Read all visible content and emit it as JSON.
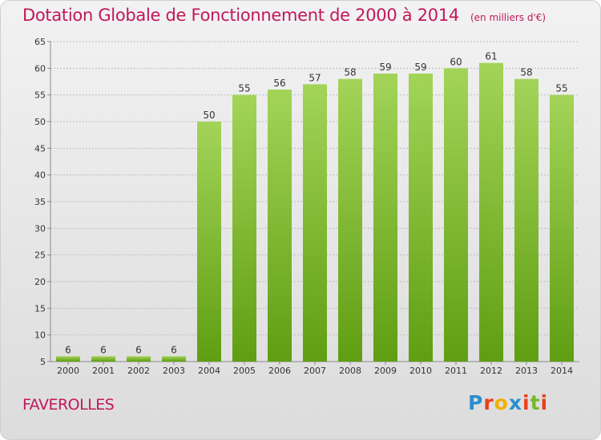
{
  "title": "Dotation Globale de Fonctionnement de 2000 à 2014",
  "unit_note": "(en milliers d'€)",
  "commune": "FAVEROLLES",
  "brand": {
    "letters": [
      "P",
      "r",
      "o",
      "x",
      "i",
      "t",
      "i"
    ],
    "colors": [
      "#2a8fd0",
      "#e8401c",
      "#f2b200",
      "#2a8fd0",
      "#e8401c",
      "#77b82a",
      "#e8401c"
    ]
  },
  "colors": {
    "title": "#c1185b",
    "bar_light": "#a3d458",
    "bar_dark": "#5f9e12",
    "grid": "#bdbdbd"
  },
  "chart_data": {
    "type": "bar",
    "categories": [
      "2000",
      "2001",
      "2002",
      "2003",
      "2004",
      "2005",
      "2006",
      "2007",
      "2008",
      "2009",
      "2010",
      "2011",
      "2012",
      "2013",
      "2014"
    ],
    "values": [
      6,
      6,
      6,
      6,
      50,
      55,
      56,
      57,
      58,
      59,
      59,
      60,
      61,
      58,
      55
    ],
    "title": "Dotation Globale de Fonctionnement de 2000 à 2014",
    "xlabel": "",
    "ylabel": "",
    "ylim": [
      5,
      65
    ],
    "yticks": [
      5,
      10,
      15,
      20,
      25,
      30,
      35,
      40,
      45,
      50,
      55,
      60,
      65
    ],
    "grid": true,
    "legend": "none"
  }
}
